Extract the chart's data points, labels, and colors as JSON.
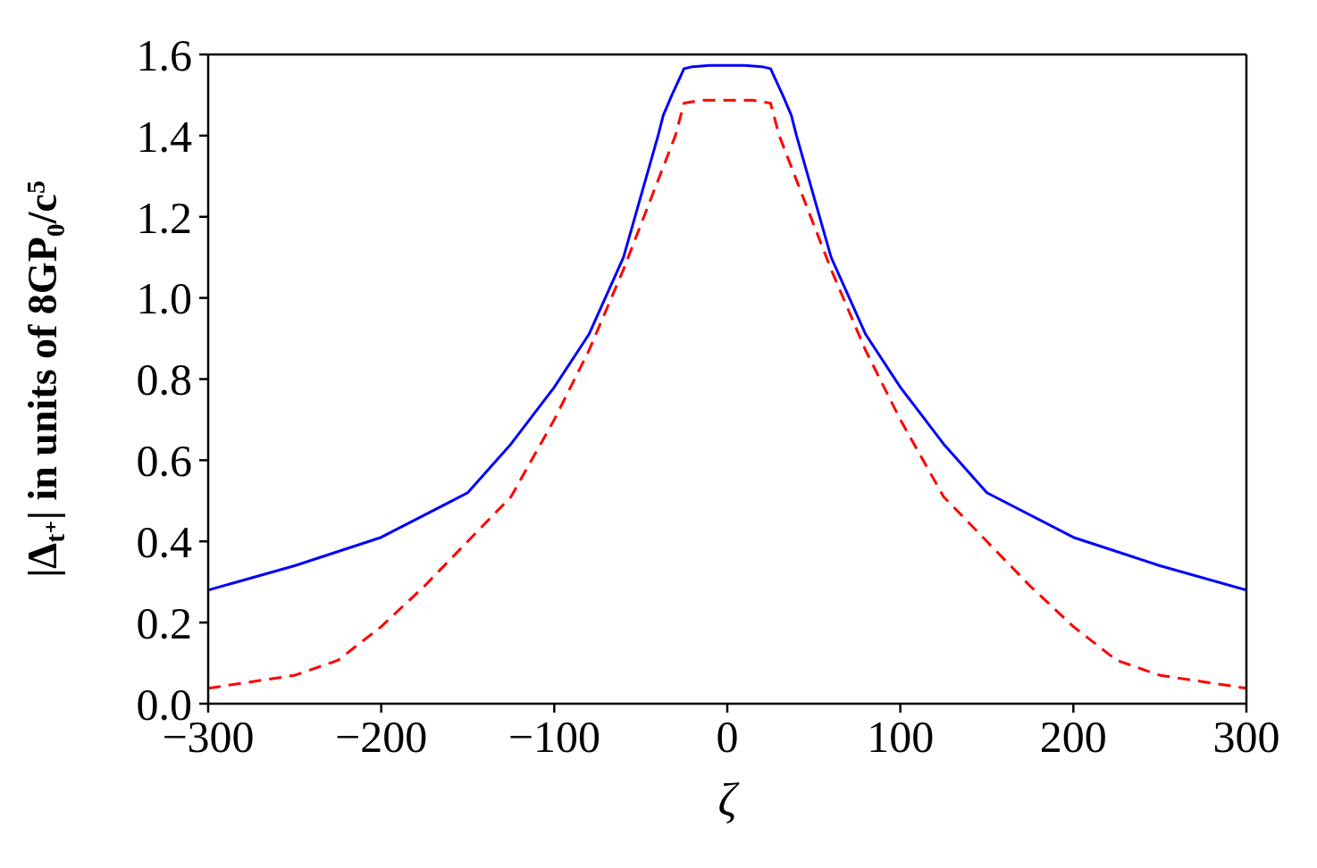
{
  "chart_data": {
    "type": "line",
    "xlabel": "ζ",
    "ylabel": "|Δ$_{t⁺}$| in units of 8GP$_{0}$/c$^{5}$",
    "xlim": [
      -300,
      300
    ],
    "ylim": [
      0,
      1.6
    ],
    "xticks": [
      {
        "value": -300,
        "label": "−300"
      },
      {
        "value": -200,
        "label": "−200"
      },
      {
        "value": -100,
        "label": "−100"
      },
      0,
      100,
      200,
      300
    ],
    "yticks": [
      {
        "value": 0,
        "label": "0.0"
      },
      {
        "value": 0.2,
        "label": "0.2"
      },
      {
        "value": 0.4,
        "label": "0.4"
      },
      {
        "value": 0.6,
        "label": "0.6"
      },
      {
        "value": 0.8,
        "label": "0.8"
      },
      {
        "value": 1,
        "label": "1.0"
      },
      {
        "value": 1.2,
        "label": "1.2"
      },
      {
        "value": 1.4,
        "label": "1.4"
      },
      {
        "value": 1.6,
        "label": "1.6"
      }
    ],
    "grid": false,
    "legend": false,
    "marker": "none",
    "series": [
      {
        "color": "#0000ff",
        "line_style": "solid",
        "x": [
          -300,
          -250,
          -200,
          -150,
          -125,
          -100,
          -80,
          -60,
          -40,
          -37,
          -32,
          -25,
          -20,
          -10,
          0,
          10,
          20,
          25,
          32,
          37,
          40,
          60,
          80,
          100,
          125,
          150,
          200,
          250,
          300
        ],
        "values": [
          0.28,
          0.34,
          0.41,
          0.52,
          0.64,
          0.78,
          0.91,
          1.1,
          1.4,
          1.45,
          1.5,
          1.565,
          1.57,
          1.573,
          1.573,
          1.573,
          1.57,
          1.565,
          1.5,
          1.45,
          1.4,
          1.1,
          0.91,
          0.78,
          0.64,
          0.52,
          0.41,
          0.34,
          0.28
        ]
      },
      {
        "color": "#ff0000",
        "line_style": "dashed",
        "x": [
          -300,
          -250,
          -225,
          -200,
          -175,
          -150,
          -125,
          -100,
          -80,
          -60,
          -40,
          -30,
          -25,
          -15,
          0,
          15,
          25,
          30,
          40,
          60,
          80,
          100,
          125,
          150,
          175,
          200,
          225,
          250,
          300
        ],
        "values": [
          0.038,
          0.07,
          0.107,
          0.19,
          0.29,
          0.4,
          0.51,
          0.7,
          0.87,
          1.07,
          1.29,
          1.4,
          1.48,
          1.487,
          1.487,
          1.487,
          1.48,
          1.4,
          1.29,
          1.07,
          0.87,
          0.7,
          0.51,
          0.4,
          0.29,
          0.19,
          0.107,
          0.07,
          0.038
        ]
      }
    ]
  }
}
